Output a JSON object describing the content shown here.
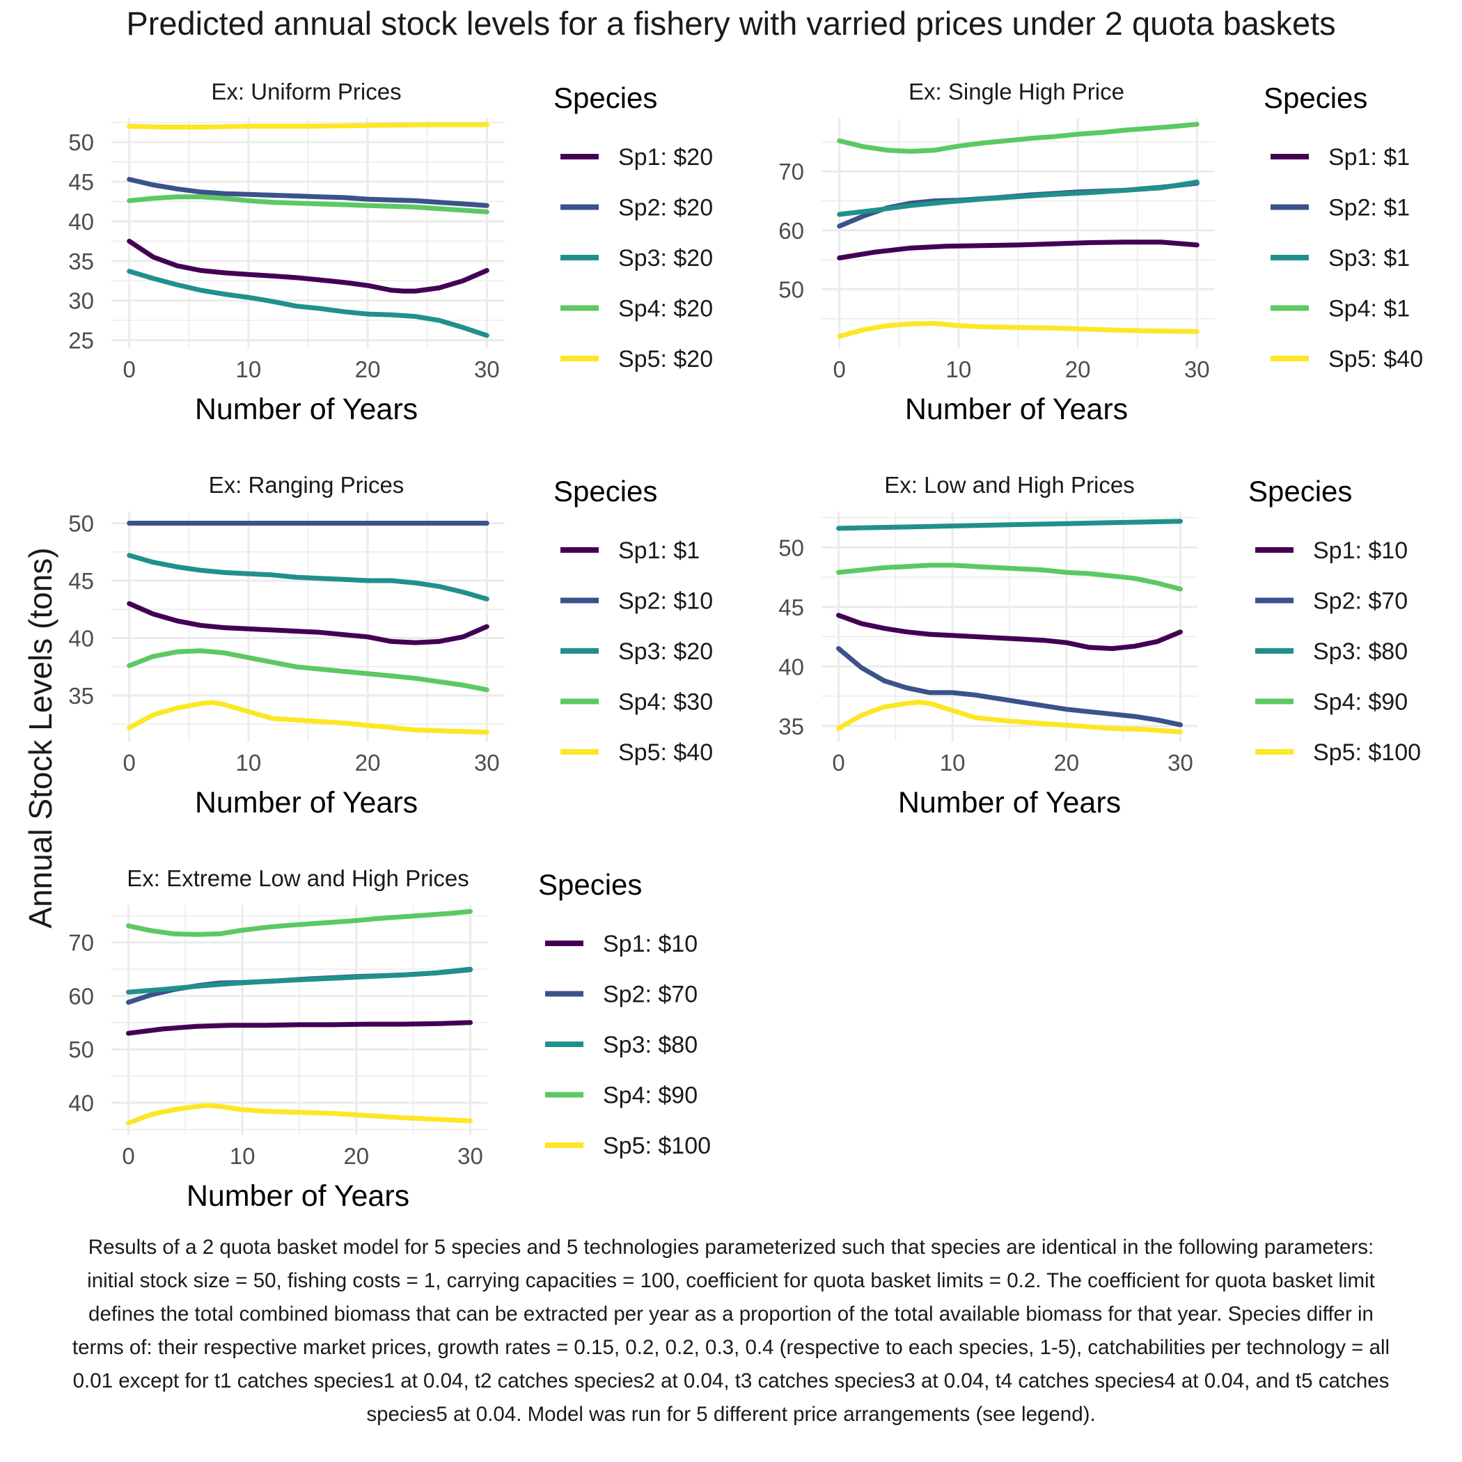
{
  "figure": {
    "title": "Predicted annual stock levels for a fishery with varried prices under 2 quota baskets",
    "ylabel": "Annual Stock Levels (tons)",
    "caption": "Results of a 2 quota basket model for 5 species and 5 technologies parameterized such that species are identical in the following parameters: initial stock size = 50, fishing costs = 1, carrying capacities = 100, coefficient for quota basket limits = 0.2. The coefficient for quota basket limit defines the total combined biomass that can be extracted per year as a proportion of the total available biomass for that year. Species differ in terms of: their respective market prices, growth rates = 0.15, 0.2, 0.2, 0.3, 0.4 (respective to each species, 1-5), catchabilities per technology = all 0.01 except for t1 catches species1 at 0.04, t2 catches species2 at 0.04, t3 catches species3 at 0.04, t4 catches species4 at 0.04, and t5 catches species5 at 0.04. Model was run for 5 different price arrangements (see legend)."
  },
  "colors": {
    "Sp1": "#440154",
    "Sp2": "#3b528b",
    "Sp3": "#21908d",
    "Sp4": "#5dc863",
    "Sp5": "#fde725",
    "grid": "#ebebeb",
    "tick_text": "#4d4d4d"
  },
  "chart_data": [
    {
      "type": "line",
      "title": "Ex: Uniform Prices",
      "xlabel": "Number of Years",
      "ylabel": "",
      "xlim": [
        -1.5,
        31.5
      ],
      "ylim": [
        24,
        53
      ],
      "xticks": [
        0,
        10,
        20,
        30
      ],
      "yticks": [
        25,
        30,
        35,
        40,
        45,
        50
      ],
      "grid": true,
      "legend": {
        "title": "Species",
        "position": "right"
      },
      "series": [
        {
          "name": "Sp1: $20",
          "color_key": "Sp1",
          "x": [
            0,
            2,
            4,
            6,
            8,
            10,
            12,
            14,
            16,
            18,
            20,
            22,
            23,
            24,
            26,
            28,
            30
          ],
          "y": [
            37.5,
            35.5,
            34.4,
            33.8,
            33.5,
            33.3,
            33.1,
            32.9,
            32.6,
            32.3,
            31.9,
            31.3,
            31.2,
            31.2,
            31.6,
            32.5,
            33.8
          ]
        },
        {
          "name": "Sp2: $20",
          "color_key": "Sp2",
          "x": [
            0,
            2,
            4,
            6,
            8,
            10,
            12,
            14,
            16,
            18,
            20,
            22,
            24,
            26,
            28,
            30
          ],
          "y": [
            45.3,
            44.6,
            44.1,
            43.7,
            43.5,
            43.4,
            43.3,
            43.2,
            43.1,
            43.0,
            42.8,
            42.7,
            42.6,
            42.4,
            42.2,
            42.0
          ]
        },
        {
          "name": "Sp3: $20",
          "color_key": "Sp3",
          "x": [
            0,
            2,
            4,
            6,
            8,
            10,
            12,
            14,
            16,
            18,
            20,
            22,
            24,
            26,
            28,
            30
          ],
          "y": [
            33.7,
            32.8,
            32.0,
            31.3,
            30.8,
            30.4,
            29.9,
            29.3,
            29.0,
            28.6,
            28.3,
            28.2,
            28.0,
            27.5,
            26.6,
            25.6
          ]
        },
        {
          "name": "Sp4: $20",
          "color_key": "Sp4",
          "x": [
            0,
            2,
            4,
            6,
            8,
            10,
            12,
            14,
            16,
            18,
            20,
            22,
            24,
            26,
            28,
            30
          ],
          "y": [
            42.6,
            42.9,
            43.1,
            43.1,
            42.9,
            42.6,
            42.4,
            42.3,
            42.2,
            42.1,
            42.0,
            41.9,
            41.8,
            41.6,
            41.4,
            41.2
          ]
        },
        {
          "name": "Sp5: $20",
          "color_key": "Sp5",
          "x": [
            0,
            3,
            6,
            10,
            15,
            20,
            25,
            30
          ],
          "y": [
            52.0,
            51.9,
            51.9,
            52.0,
            52.0,
            52.1,
            52.2,
            52.2
          ]
        }
      ]
    },
    {
      "type": "line",
      "title": "Ex: Single High Price",
      "xlabel": "Number of Years",
      "ylabel": "",
      "xlim": [
        -1.5,
        31.5
      ],
      "ylim": [
        40,
        79
      ],
      "xticks": [
        0,
        10,
        20,
        30
      ],
      "yticks": [
        50,
        60,
        70
      ],
      "grid": true,
      "legend": {
        "title": "Species",
        "position": "right"
      },
      "series": [
        {
          "name": "Sp1: $1",
          "color_key": "Sp1",
          "x": [
            0,
            3,
            6,
            9,
            12,
            15,
            18,
            21,
            24,
            27,
            30
          ],
          "y": [
            55.3,
            56.3,
            57.0,
            57.3,
            57.4,
            57.5,
            57.7,
            57.9,
            58.0,
            58.0,
            57.5
          ]
        },
        {
          "name": "Sp2: $1",
          "color_key": "Sp2",
          "x": [
            0,
            2,
            4,
            6,
            8,
            10,
            13,
            16,
            20,
            24,
            27,
            30
          ],
          "y": [
            60.7,
            62.4,
            63.8,
            64.6,
            65.0,
            65.1,
            65.5,
            66.0,
            66.5,
            66.8,
            67.3,
            68.0
          ]
        },
        {
          "name": "Sp3: $1",
          "color_key": "Sp3",
          "x": [
            0,
            3,
            6,
            9,
            12,
            15,
            18,
            21,
            24,
            27,
            30
          ],
          "y": [
            62.7,
            63.4,
            64.2,
            64.8,
            65.3,
            65.7,
            66.1,
            66.4,
            66.8,
            67.2,
            68.2
          ]
        },
        {
          "name": "Sp4: $1",
          "color_key": "Sp4",
          "x": [
            0,
            2,
            4,
            6,
            8,
            10,
            12,
            14,
            16,
            18,
            20,
            22,
            24,
            26,
            28,
            30
          ],
          "y": [
            75.2,
            74.2,
            73.6,
            73.4,
            73.6,
            74.3,
            74.8,
            75.2,
            75.6,
            75.9,
            76.3,
            76.6,
            77.0,
            77.3,
            77.6,
            78.0
          ]
        },
        {
          "name": "Sp5: $40",
          "color_key": "Sp5",
          "x": [
            0,
            2,
            4,
            6,
            8,
            10,
            12,
            15,
            18,
            21,
            24,
            27,
            30
          ],
          "y": [
            42.0,
            43.1,
            43.8,
            44.1,
            44.2,
            43.8,
            43.6,
            43.5,
            43.4,
            43.2,
            43.0,
            42.9,
            42.8
          ]
        }
      ]
    },
    {
      "type": "line",
      "title": "Ex: Ranging Prices",
      "xlabel": "Number of Years",
      "ylabel": "",
      "xlim": [
        -1.5,
        31.5
      ],
      "ylim": [
        31,
        51
      ],
      "xticks": [
        0,
        10,
        20,
        30
      ],
      "yticks": [
        35,
        40,
        45,
        50
      ],
      "grid": true,
      "legend": {
        "title": "Species",
        "position": "right"
      },
      "series": [
        {
          "name": "Sp1: $1",
          "color_key": "Sp1",
          "x": [
            0,
            2,
            4,
            6,
            8,
            10,
            12,
            14,
            16,
            18,
            20,
            22,
            24,
            26,
            28,
            30
          ],
          "y": [
            43.0,
            42.1,
            41.5,
            41.1,
            40.9,
            40.8,
            40.7,
            40.6,
            40.5,
            40.3,
            40.1,
            39.7,
            39.6,
            39.7,
            40.1,
            41.0
          ]
        },
        {
          "name": "Sp2: $10",
          "color_key": "Sp2",
          "x": [
            0,
            10,
            20,
            30
          ],
          "y": [
            50.0,
            50.0,
            50.0,
            50.0
          ]
        },
        {
          "name": "Sp3: $20",
          "color_key": "Sp3",
          "x": [
            0,
            2,
            4,
            6,
            8,
            10,
            12,
            14,
            16,
            18,
            20,
            22,
            24,
            26,
            28,
            30
          ],
          "y": [
            47.2,
            46.6,
            46.2,
            45.9,
            45.7,
            45.6,
            45.5,
            45.3,
            45.2,
            45.1,
            45.0,
            45.0,
            44.8,
            44.5,
            44.0,
            43.4
          ]
        },
        {
          "name": "Sp4: $30",
          "color_key": "Sp4",
          "x": [
            0,
            2,
            4,
            6,
            8,
            10,
            12,
            14,
            16,
            18,
            20,
            22,
            24,
            26,
            28,
            30
          ],
          "y": [
            37.6,
            38.4,
            38.8,
            38.9,
            38.7,
            38.3,
            37.9,
            37.5,
            37.3,
            37.1,
            36.9,
            36.7,
            36.5,
            36.2,
            35.9,
            35.5
          ]
        },
        {
          "name": "Sp5: $40",
          "color_key": "Sp5",
          "x": [
            0,
            2,
            4,
            6,
            7,
            8,
            10,
            12,
            15,
            18,
            21,
            24,
            27,
            30
          ],
          "y": [
            32.2,
            33.3,
            33.9,
            34.3,
            34.4,
            34.2,
            33.6,
            33.0,
            32.8,
            32.6,
            32.3,
            32.0,
            31.9,
            31.8
          ]
        }
      ]
    },
    {
      "type": "line",
      "title": "Ex: Low and High Prices",
      "xlabel": "Number of Years",
      "ylabel": "",
      "xlim": [
        -1.5,
        31.5
      ],
      "ylim": [
        33.7,
        53.0
      ],
      "xticks": [
        0,
        10,
        20,
        30
      ],
      "yticks": [
        35,
        40,
        45,
        50
      ],
      "grid": true,
      "legend": {
        "title": "Species",
        "position": "right"
      },
      "series": [
        {
          "name": "Sp1: $10",
          "color_key": "Sp1",
          "x": [
            0,
            2,
            4,
            6,
            8,
            10,
            12,
            14,
            16,
            18,
            20,
            22,
            24,
            26,
            28,
            30
          ],
          "y": [
            44.3,
            43.6,
            43.2,
            42.9,
            42.7,
            42.6,
            42.5,
            42.4,
            42.3,
            42.2,
            42.0,
            41.6,
            41.5,
            41.7,
            42.1,
            42.9
          ]
        },
        {
          "name": "Sp2: $70",
          "color_key": "Sp2",
          "x": [
            0,
            2,
            4,
            6,
            8,
            10,
            12,
            14,
            16,
            18,
            20,
            22,
            24,
            26,
            28,
            30
          ],
          "y": [
            41.5,
            39.9,
            38.8,
            38.2,
            37.8,
            37.8,
            37.6,
            37.3,
            37.0,
            36.7,
            36.4,
            36.2,
            36.0,
            35.8,
            35.5,
            35.1
          ]
        },
        {
          "name": "Sp3: $80",
          "color_key": "Sp3",
          "x": [
            0,
            5,
            10,
            15,
            20,
            25,
            30
          ],
          "y": [
            51.6,
            51.7,
            51.8,
            51.9,
            52.0,
            52.1,
            52.2
          ]
        },
        {
          "name": "Sp4: $90",
          "color_key": "Sp4",
          "x": [
            0,
            2,
            4,
            6,
            8,
            10,
            12,
            14,
            16,
            18,
            20,
            22,
            24,
            26,
            28,
            30
          ],
          "y": [
            47.9,
            48.1,
            48.3,
            48.4,
            48.5,
            48.5,
            48.4,
            48.3,
            48.2,
            48.1,
            47.9,
            47.8,
            47.6,
            47.4,
            47.0,
            46.5
          ]
        },
        {
          "name": "Sp5: $100",
          "color_key": "Sp5",
          "x": [
            0,
            2,
            4,
            6,
            7,
            8,
            10,
            12,
            15,
            18,
            21,
            24,
            27,
            30
          ],
          "y": [
            34.8,
            35.9,
            36.6,
            36.9,
            37.0,
            36.9,
            36.3,
            35.7,
            35.4,
            35.2,
            35.0,
            34.8,
            34.7,
            34.5
          ]
        }
      ]
    },
    {
      "type": "line",
      "title": "Ex: Extreme Low and High Prices",
      "xlabel": "Number of Years",
      "ylabel": "",
      "xlim": [
        -1.5,
        31.5
      ],
      "ylim": [
        34,
        77
      ],
      "xticks": [
        0,
        10,
        20,
        30
      ],
      "yticks": [
        40,
        50,
        60,
        70
      ],
      "grid": true,
      "legend": {
        "title": "Species",
        "position": "right"
      },
      "series": [
        {
          "name": "Sp1: $10",
          "color_key": "Sp1",
          "x": [
            0,
            3,
            6,
            9,
            12,
            15,
            18,
            21,
            24,
            27,
            30
          ],
          "y": [
            53.0,
            53.8,
            54.3,
            54.5,
            54.5,
            54.6,
            54.6,
            54.7,
            54.7,
            54.8,
            55.0
          ]
        },
        {
          "name": "Sp2: $70",
          "color_key": "Sp2",
          "x": [
            0,
            2,
            4,
            6,
            8,
            10,
            13,
            16,
            20,
            24,
            27,
            30
          ],
          "y": [
            58.8,
            60.2,
            61.2,
            61.9,
            62.4,
            62.5,
            62.8,
            63.2,
            63.6,
            63.9,
            64.3,
            64.9
          ]
        },
        {
          "name": "Sp3: $80",
          "color_key": "Sp3",
          "x": [
            0,
            3,
            6,
            9,
            12,
            15,
            18,
            21,
            24,
            27,
            30
          ],
          "y": [
            60.7,
            61.2,
            61.8,
            62.3,
            62.7,
            63.0,
            63.3,
            63.6,
            63.9,
            64.3,
            65.0
          ]
        },
        {
          "name": "Sp4: $90",
          "color_key": "Sp4",
          "x": [
            0,
            2,
            4,
            6,
            8,
            10,
            12,
            14,
            16,
            18,
            20,
            22,
            24,
            26,
            28,
            30
          ],
          "y": [
            73.1,
            72.2,
            71.6,
            71.5,
            71.6,
            72.3,
            72.8,
            73.2,
            73.5,
            73.8,
            74.1,
            74.5,
            74.8,
            75.1,
            75.4,
            75.8
          ]
        },
        {
          "name": "Sp5: $100",
          "color_key": "Sp5",
          "x": [
            0,
            2,
            4,
            6,
            7,
            8,
            10,
            12,
            15,
            18,
            21,
            24,
            27,
            30
          ],
          "y": [
            36.2,
            37.8,
            38.7,
            39.3,
            39.5,
            39.3,
            38.7,
            38.4,
            38.2,
            38.0,
            37.6,
            37.2,
            36.9,
            36.6
          ]
        }
      ]
    }
  ]
}
